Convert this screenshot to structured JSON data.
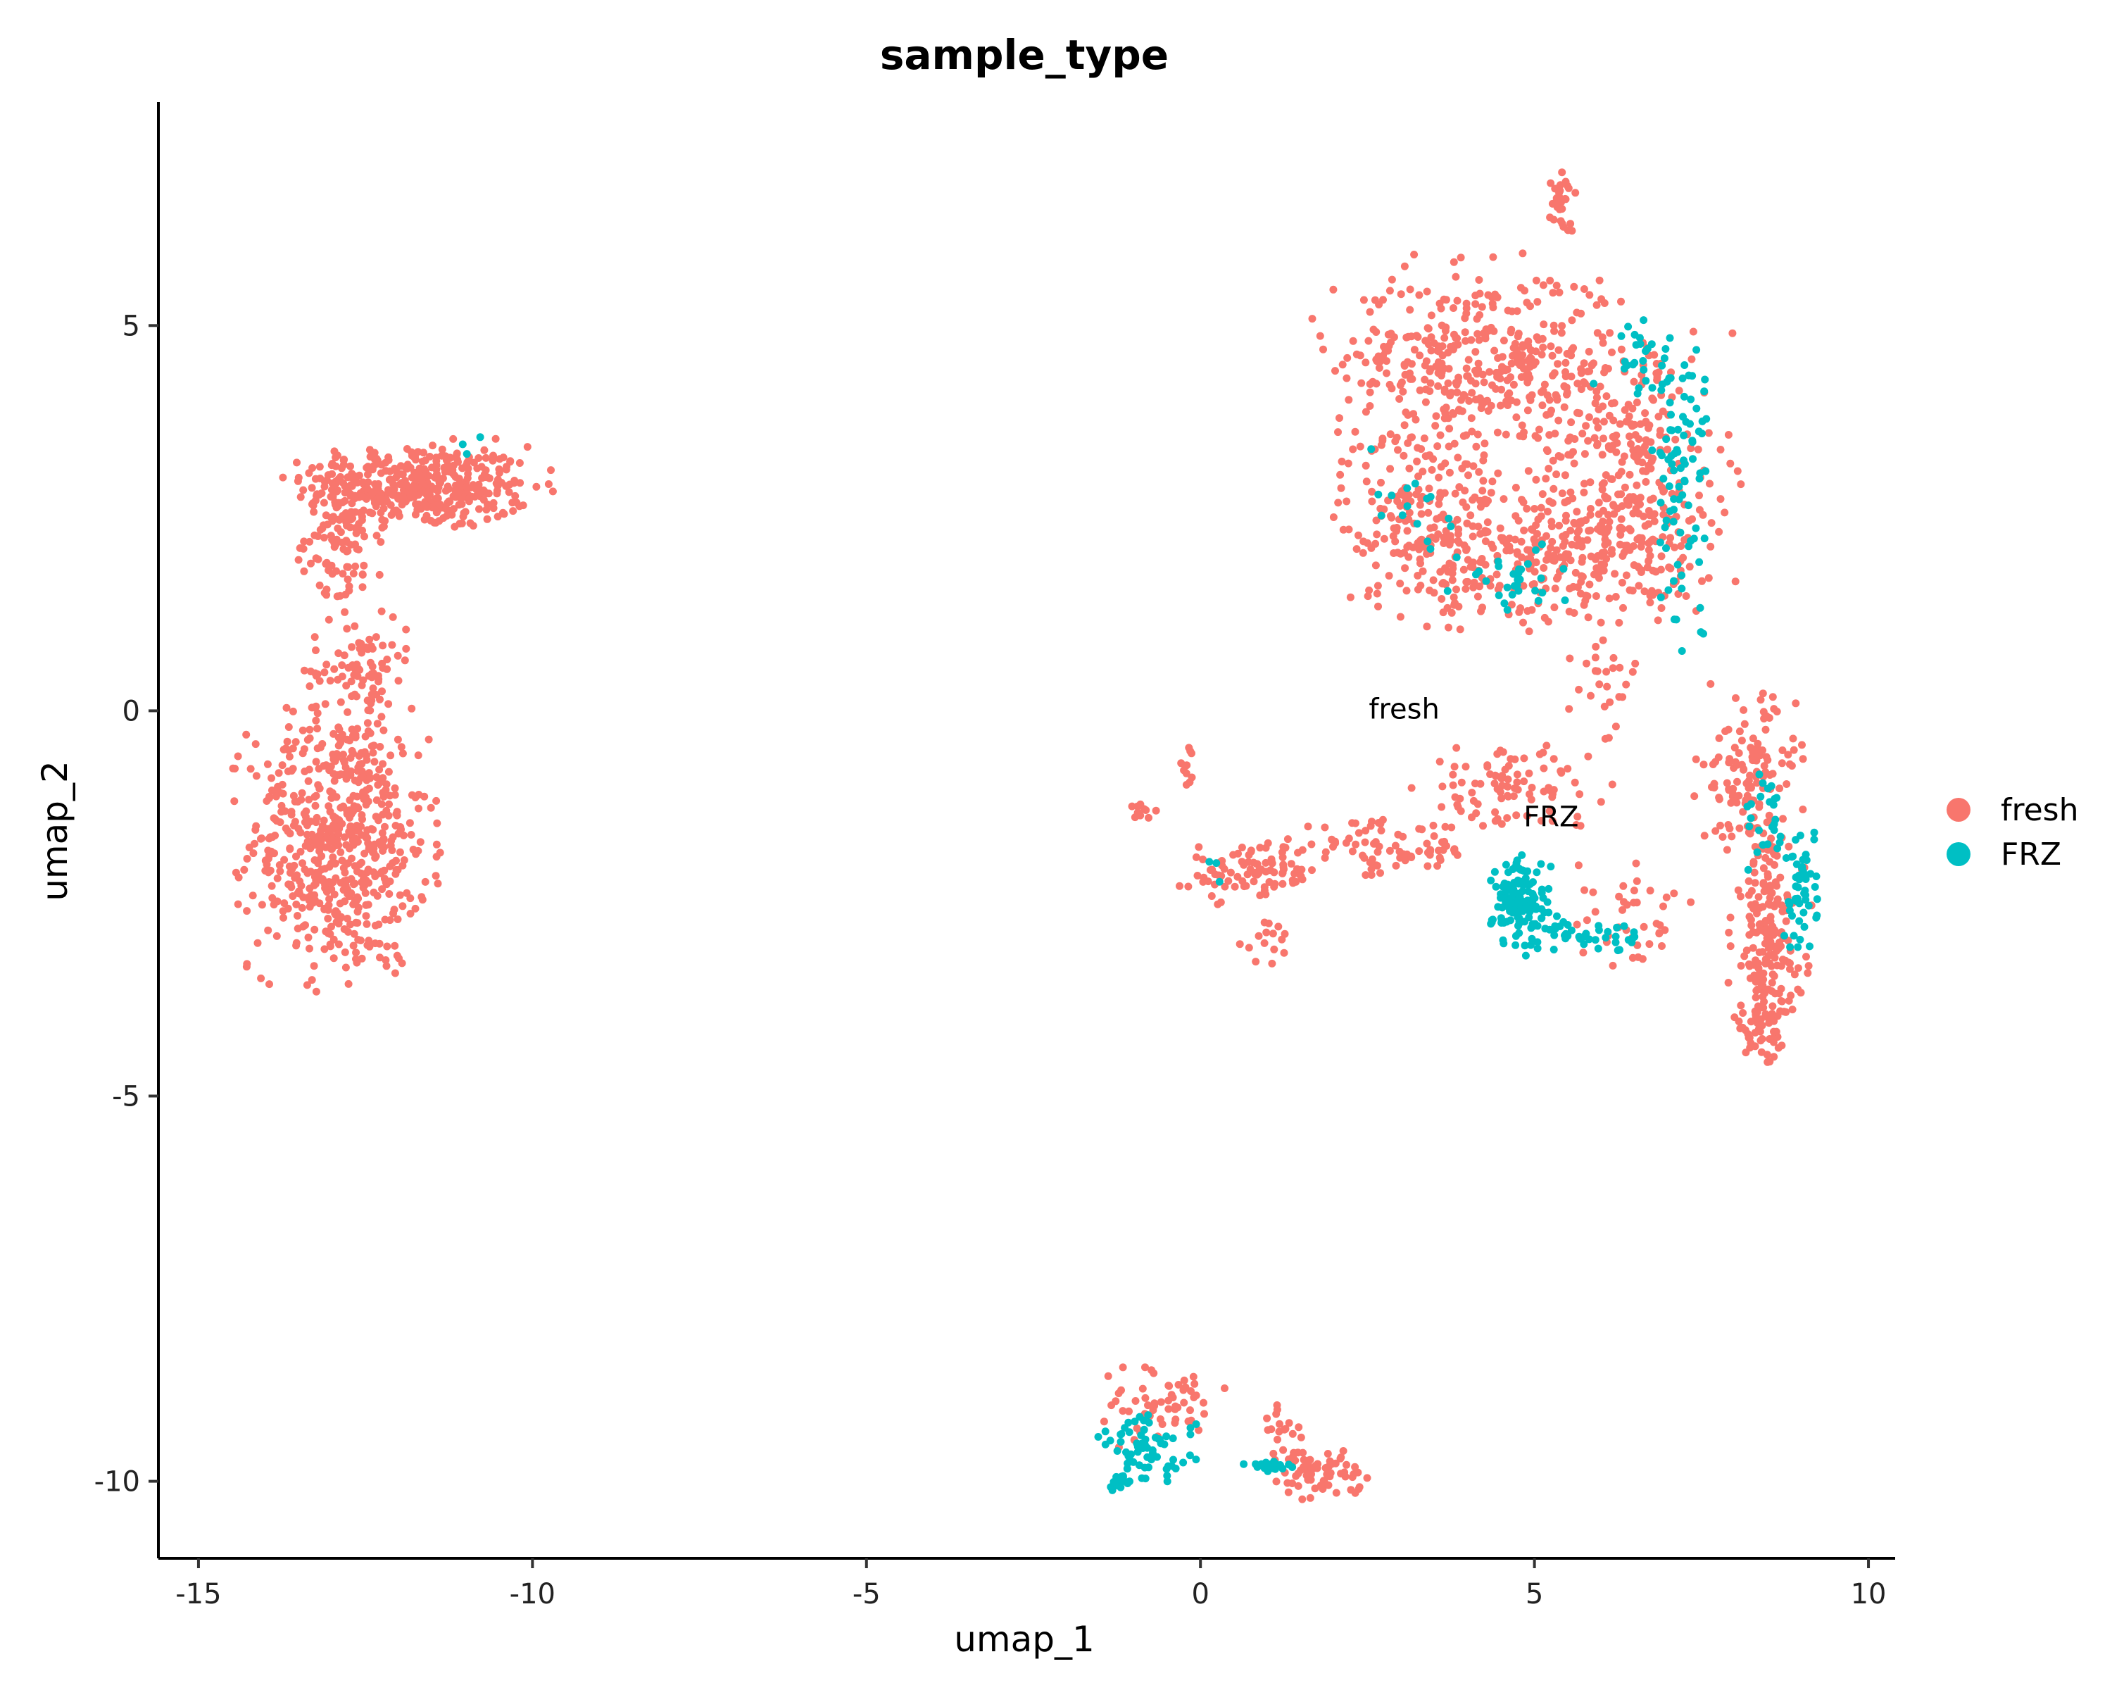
{
  "chart_data": {
    "type": "scatter",
    "title": "sample_type",
    "xlabel": "umap_1",
    "ylabel": "umap_2",
    "xlim": [
      -15.6,
      10.4
    ],
    "ylim": [
      -11.0,
      7.9
    ],
    "xticks": [
      -15,
      -10,
      -5,
      0,
      5,
      10
    ],
    "yticks": [
      5,
      0,
      -5,
      -10
    ],
    "xtick_labels": [
      "-15",
      "-10",
      "-5",
      "0",
      "5",
      "10"
    ],
    "ytick_labels": [
      "5",
      "0",
      "-5",
      "-10"
    ],
    "grid": false,
    "legend_position": "right",
    "series": [
      {
        "name": "fresh",
        "color": "#F8766D",
        "clusters": [
          {
            "cx": -11.7,
            "cy": 2.9,
            "rx": 1.4,
            "ry": 0.45,
            "n": 420
          },
          {
            "cx": -12.8,
            "cy": 2.3,
            "rx": 0.5,
            "ry": 0.8,
            "n": 120
          },
          {
            "cx": -12.9,
            "cy": -1.7,
            "rx": 1.1,
            "ry": 1.4,
            "n": 620
          },
          {
            "cx": -12.6,
            "cy": 0.5,
            "rx": 0.6,
            "ry": 0.6,
            "n": 90
          },
          {
            "cx": 4.2,
            "cy": 4.5,
            "rx": 1.8,
            "ry": 1.0,
            "n": 420
          },
          {
            "cx": 3.3,
            "cy": 2.5,
            "rx": 1.0,
            "ry": 1.0,
            "n": 200
          },
          {
            "cx": 5.5,
            "cy": 2.0,
            "rx": 1.8,
            "ry": 0.7,
            "n": 280
          },
          {
            "cx": 6.4,
            "cy": 3.2,
            "rx": 1.2,
            "ry": 1.3,
            "n": 260
          },
          {
            "cx": 5.4,
            "cy": 6.6,
            "rx": 0.15,
            "ry": 0.35,
            "n": 35
          },
          {
            "cx": 8.2,
            "cy": -0.8,
            "rx": 0.6,
            "ry": 0.8,
            "n": 120
          },
          {
            "cx": 8.5,
            "cy": -2.9,
            "rx": 0.45,
            "ry": 1.2,
            "n": 190
          },
          {
            "cx": 8.4,
            "cy": -4.1,
            "rx": 0.35,
            "ry": 0.35,
            "n": 50
          },
          {
            "cx": 4.6,
            "cy": -1.0,
            "rx": 1.1,
            "ry": 0.4,
            "n": 90
          },
          {
            "cx": 2.8,
            "cy": -1.8,
            "rx": 1.1,
            "ry": 0.3,
            "n": 80
          },
          {
            "cx": 0.8,
            "cy": -2.1,
            "rx": 0.8,
            "ry": 0.3,
            "n": 90
          },
          {
            "cx": 6.6,
            "cy": -2.7,
            "rx": 0.8,
            "ry": 0.5,
            "n": 40
          },
          {
            "cx": 6.0,
            "cy": 0.5,
            "rx": 0.5,
            "ry": 0.7,
            "n": 30
          },
          {
            "cx": -0.2,
            "cy": -0.7,
            "rx": 0.1,
            "ry": 0.25,
            "n": 10
          },
          {
            "cx": -0.9,
            "cy": -1.3,
            "rx": 0.3,
            "ry": 0.1,
            "n": 10
          },
          {
            "cx": 1.0,
            "cy": -3.0,
            "rx": 0.3,
            "ry": 0.3,
            "n": 15
          },
          {
            "cx": -0.6,
            "cy": -9.0,
            "rx": 0.7,
            "ry": 0.4,
            "n": 60
          },
          {
            "cx": 1.8,
            "cy": -9.9,
            "rx": 0.5,
            "ry": 0.25,
            "n": 70
          },
          {
            "cx": 1.2,
            "cy": -9.3,
            "rx": 0.3,
            "ry": 0.3,
            "n": 20
          }
        ]
      },
      {
        "name": "FRZ",
        "color": "#00BFC4",
        "clusters": [
          {
            "cx": 7.2,
            "cy": 3.0,
            "rx": 0.35,
            "ry": 1.6,
            "n": 80
          },
          {
            "cx": 6.6,
            "cy": 4.6,
            "rx": 0.5,
            "ry": 0.4,
            "n": 30
          },
          {
            "cx": 4.6,
            "cy": 1.7,
            "rx": 0.8,
            "ry": 0.4,
            "n": 30
          },
          {
            "cx": 3.2,
            "cy": 2.8,
            "rx": 0.6,
            "ry": 0.6,
            "n": 15
          },
          {
            "cx": 4.8,
            "cy": -2.5,
            "rx": 0.35,
            "ry": 0.5,
            "n": 130
          },
          {
            "cx": 5.8,
            "cy": -2.9,
            "rx": 0.6,
            "ry": 0.2,
            "n": 40
          },
          {
            "cx": 9.0,
            "cy": -2.3,
            "rx": 0.2,
            "ry": 0.7,
            "n": 50
          },
          {
            "cx": 8.5,
            "cy": -1.5,
            "rx": 0.3,
            "ry": 0.6,
            "n": 25
          },
          {
            "cx": -0.8,
            "cy": -9.6,
            "rx": 0.6,
            "ry": 0.35,
            "n": 70
          },
          {
            "cx": -1.2,
            "cy": -10.0,
            "rx": 0.15,
            "ry": 0.1,
            "n": 15
          },
          {
            "cx": 1.0,
            "cy": -9.8,
            "rx": 0.3,
            "ry": 0.05,
            "n": 20
          },
          {
            "cx": -11.0,
            "cy": 3.3,
            "rx": 0.4,
            "ry": 0.2,
            "n": 3
          },
          {
            "cx": 0.2,
            "cy": -2.1,
            "rx": 0.2,
            "ry": 0.2,
            "n": 3
          }
        ]
      }
    ],
    "annotations": [
      {
        "text": "fresh",
        "x": 3.05,
        "y": -0.1
      },
      {
        "text": "FRZ",
        "x": 5.25,
        "y": -1.5
      }
    ]
  },
  "legend": {
    "items": [
      {
        "label": "fresh",
        "color": "#F8766D"
      },
      {
        "label": "FRZ",
        "color": "#00BFC4"
      }
    ]
  }
}
